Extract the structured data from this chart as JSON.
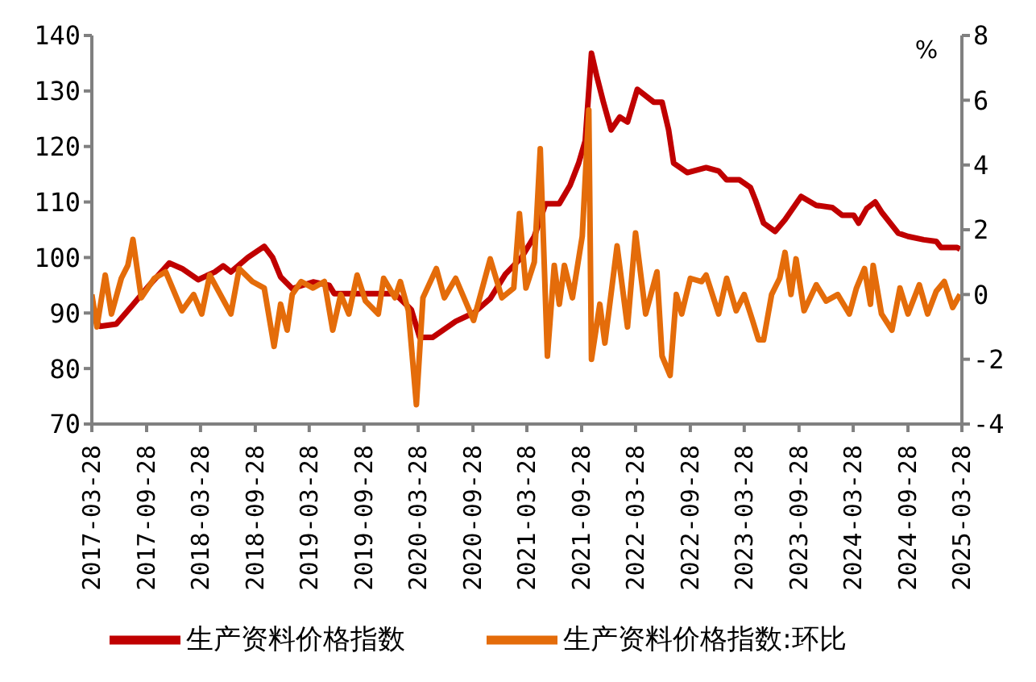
{
  "chart_data": {
    "type": "line",
    "y2label": "%",
    "legend": "bottom",
    "grid": false,
    "marker": "none",
    "line_style": "solid",
    "xlim": [
      "2017-03-28",
      "2025-03-28"
    ],
    "xticks": [
      "2017-03-28",
      "2017-09-28",
      "2018-03-28",
      "2018-09-28",
      "2019-03-28",
      "2019-09-28",
      "2020-03-28",
      "2020-09-28",
      "2021-03-28",
      "2021-09-28",
      "2022-03-28",
      "2022-09-28",
      "2023-03-28",
      "2023-09-28",
      "2024-03-28",
      "2024-09-28",
      "2025-03-28"
    ],
    "ylim": [
      70,
      140
    ],
    "yticks": [
      70,
      80,
      90,
      100,
      110,
      120,
      130,
      140
    ],
    "y2lim": [
      -4,
      8
    ],
    "y2ticks": [
      -4,
      -2,
      0,
      2,
      4,
      6,
      8
    ],
    "series": [
      {
        "name": "生产资料价格指数",
        "color": "#c00000",
        "x": [
          "2017-03-28",
          "2017-04-25",
          "2017-06-18",
          "2017-08-13",
          "2017-10-07",
          "2017-12-13",
          "2018-01-25",
          "2018-03-20",
          "2018-05-15",
          "2018-06-12",
          "2018-07-08",
          "2018-09-03",
          "2018-10-28",
          "2018-11-25",
          "2018-12-22",
          "2019-01-30",
          "2019-04-10",
          "2019-06-03",
          "2019-06-20",
          "2020-01-10",
          "2020-03-05",
          "2020-04-02",
          "2020-05-15",
          "2020-08-01",
          "2020-09-30",
          "2020-11-25",
          "2021-01-15",
          "2021-03-10",
          "2021-04-22",
          "2021-05-30",
          "2021-07-15",
          "2021-08-20",
          "2021-09-18",
          "2021-10-10",
          "2021-10-31",
          "2021-11-18",
          "2021-12-10",
          "2022-01-05",
          "2022-02-03",
          "2022-03-01",
          "2022-04-03",
          "2022-05-28",
          "2022-06-25",
          "2022-07-17",
          "2022-08-03",
          "2022-09-18",
          "2022-11-20",
          "2023-01-01",
          "2023-01-28",
          "2023-03-12",
          "2023-04-18",
          "2023-05-05",
          "2023-06-01",
          "2023-07-10",
          "2023-08-12",
          "2023-10-05",
          "2023-11-25",
          "2024-01-18",
          "2024-02-20",
          "2024-03-30",
          "2024-04-15",
          "2024-05-12",
          "2024-06-10",
          "2024-07-01",
          "2024-08-26",
          "2024-09-28",
          "2024-11-20",
          "2025-01-01",
          "2025-01-17",
          "2025-03-12",
          "2025-03-22"
        ],
        "values": [
          89.5,
          87.6,
          88,
          91.5,
          95,
          99,
          98,
          96,
          97.4,
          98.5,
          97.4,
          100,
          102,
          100,
          96.5,
          94.4,
          95.6,
          95,
          93.5,
          93.5,
          90.6,
          85.6,
          85.6,
          88.5,
          90,
          92.6,
          97,
          100,
          103.8,
          109.7,
          109.7,
          113,
          117,
          121,
          136.8,
          132.6,
          128,
          123,
          125.3,
          124.4,
          130.3,
          128,
          128,
          123,
          117,
          115.3,
          116.2,
          115.6,
          114,
          114,
          112.6,
          110.3,
          106.2,
          104.7,
          106.8,
          111,
          109.4,
          109,
          107.6,
          107.6,
          106.2,
          108.8,
          110,
          108.2,
          104.4,
          103.8,
          103.2,
          102.9,
          101.8,
          101.8,
          101.5
        ]
      },
      {
        "name": "生产资料价格指数:环比",
        "color": "#e46c0a",
        "axis": "y2",
        "x": [
          "2017-03-28",
          "2017-04-14",
          "2017-05-12",
          "2017-06-02",
          "2017-07-05",
          "2017-07-27",
          "2017-08-13",
          "2017-09-10",
          "2017-10-24",
          "2017-12-01",
          "2018-01-25",
          "2018-03-05",
          "2018-04-01",
          "2018-04-28",
          "2018-07-08",
          "2018-08-05",
          "2018-09-18",
          "2018-10-28",
          "2018-11-30",
          "2018-12-22",
          "2019-01-13",
          "2019-01-30",
          "2019-03-01",
          "2019-04-10",
          "2019-05-18",
          "2019-06-15",
          "2019-07-12",
          "2019-08-08",
          "2019-09-05",
          "2019-10-03",
          "2019-11-15",
          "2019-12-03",
          "2020-01-10",
          "2020-01-28",
          "2020-02-24",
          "2020-03-22",
          "2020-04-13",
          "2020-05-28",
          "2020-06-24",
          "2020-08-01",
          "2020-09-30",
          "2020-11-25",
          "2021-01-03",
          "2021-02-12",
          "2021-03-03",
          "2021-03-25",
          "2021-04-22",
          "2021-05-12",
          "2021-06-05",
          "2021-06-28",
          "2021-07-15",
          "2021-08-01",
          "2021-08-28",
          "2021-09-30",
          "2021-10-22",
          "2021-10-31",
          "2021-11-28",
          "2021-12-15",
          "2022-01-25",
          "2022-03-01",
          "2022-03-28",
          "2022-05-01",
          "2022-06-08",
          "2022-06-25",
          "2022-07-22",
          "2022-08-12",
          "2022-08-30",
          "2022-09-28",
          "2022-11-05",
          "2022-11-20",
          "2023-01-01",
          "2023-01-28",
          "2023-03-01",
          "2023-03-28",
          "2023-04-25",
          "2023-05-15",
          "2023-06-01",
          "2023-06-28",
          "2023-07-25",
          "2023-08-12",
          "2023-09-01",
          "2023-09-18",
          "2023-10-15",
          "2023-11-25",
          "2023-12-28",
          "2024-02-05",
          "2024-03-15",
          "2024-04-08",
          "2024-05-05",
          "2024-05-25",
          "2024-06-03",
          "2024-07-01",
          "2024-08-05",
          "2024-09-01",
          "2024-09-28",
          "2024-11-05",
          "2024-12-03",
          "2025-01-01",
          "2025-01-28",
          "2025-02-25",
          "2025-03-22"
        ],
        "values": [
          0,
          -1,
          0.6,
          -0.6,
          0.5,
          0.9,
          1.7,
          -0.1,
          0.5,
          0.7,
          -0.5,
          0,
          -0.6,
          0.6,
          -0.6,
          0.8,
          0.4,
          0.2,
          -1.6,
          -0.3,
          -1.1,
          0,
          0.4,
          0.2,
          0.4,
          -1.1,
          0,
          -0.6,
          0.6,
          -0.2,
          -0.6,
          0.5,
          -0.1,
          0.4,
          -0.5,
          -3.4,
          -0.1,
          0.8,
          -0.1,
          0.5,
          -0.8,
          1.1,
          -0.1,
          0.2,
          2.5,
          0.2,
          1,
          4.5,
          -1.9,
          0.9,
          -0.3,
          0.9,
          -0.1,
          1.8,
          5.7,
          -2,
          -0.3,
          -1.5,
          1.5,
          -1,
          1.9,
          -0.6,
          0.7,
          -1.9,
          -2.5,
          0,
          -0.6,
          0.5,
          0.4,
          0.6,
          -0.6,
          0.5,
          -0.5,
          0,
          -0.8,
          -1.4,
          -1.4,
          0,
          0.5,
          1.3,
          0,
          1.1,
          -0.5,
          0.3,
          -0.2,
          0,
          -0.6,
          0.2,
          0.8,
          -0.3,
          0.9,
          -0.6,
          -1.1,
          0.2,
          -0.6,
          0.3,
          -0.6,
          0.1,
          0.4,
          -0.4,
          0
        ]
      }
    ]
  }
}
